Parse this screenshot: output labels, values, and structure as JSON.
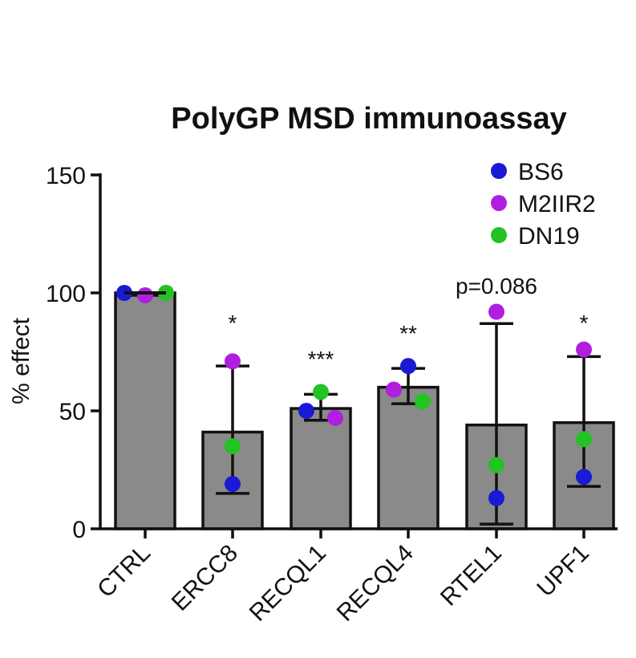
{
  "chart_data": {
    "type": "bar",
    "title": "PolyGP MSD immunoassay",
    "xlabel": "",
    "ylabel": "% effect",
    "ylim": [
      0,
      150
    ],
    "yticks": [
      0,
      50,
      100,
      150
    ],
    "categories": [
      "CTRL",
      "ERCC8",
      "RECQL1",
      "RECQL4",
      "RTEL1",
      "UPF1"
    ],
    "values": [
      100,
      41,
      51,
      60,
      44,
      45
    ],
    "error": [
      [
        99,
        100
      ],
      [
        15,
        69
      ],
      [
        46,
        57
      ],
      [
        53,
        68
      ],
      [
        2,
        87
      ],
      [
        18,
        73
      ]
    ],
    "annotations": [
      "",
      "*",
      "***",
      "**",
      "p=0.086",
      "*"
    ],
    "series": [
      {
        "name": "BS6",
        "color": "#1a1ad6",
        "values": [
          100,
          19,
          50,
          69,
          13,
          22
        ]
      },
      {
        "name": "M2IIR2",
        "color": "#b01ee0",
        "values": [
          99,
          71,
          47,
          59,
          92,
          76
        ]
      },
      {
        "name": "DN19",
        "color": "#22c322",
        "values": [
          100,
          35,
          58,
          54,
          27,
          38
        ]
      }
    ],
    "bar_color": "#8a8a8a",
    "legend_position": "top-right",
    "grid": false
  }
}
